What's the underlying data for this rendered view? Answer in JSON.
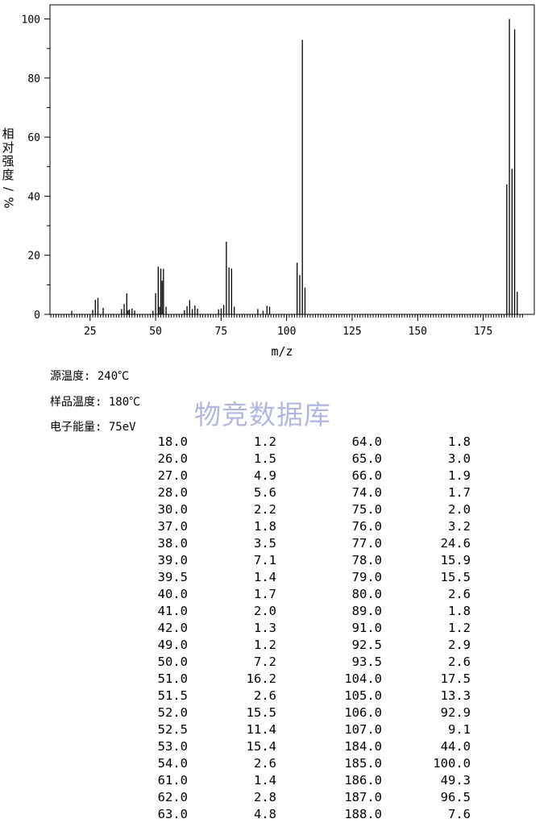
{
  "chart_data": {
    "type": "bar",
    "xlabel": "m/z",
    "ylabel": "相对强度/%",
    "xlim": [
      10,
      190
    ],
    "ylim": [
      0,
      100
    ],
    "x_ticks": [
      "25",
      "50",
      "75",
      "100",
      "125",
      "150",
      "175"
    ],
    "y_ticks": [
      "0",
      "20",
      "40",
      "60",
      "80",
      "100"
    ],
    "peaks": [
      {
        "mz": 18.0,
        "intensity": 1.2
      },
      {
        "mz": 26.0,
        "intensity": 1.5
      },
      {
        "mz": 27.0,
        "intensity": 4.9
      },
      {
        "mz": 28.0,
        "intensity": 5.6
      },
      {
        "mz": 30.0,
        "intensity": 2.2
      },
      {
        "mz": 37.0,
        "intensity": 1.8
      },
      {
        "mz": 38.0,
        "intensity": 3.5
      },
      {
        "mz": 39.0,
        "intensity": 7.1
      },
      {
        "mz": 39.5,
        "intensity": 1.4
      },
      {
        "mz": 40.0,
        "intensity": 1.7
      },
      {
        "mz": 41.0,
        "intensity": 2.0
      },
      {
        "mz": 42.0,
        "intensity": 1.3
      },
      {
        "mz": 49.0,
        "intensity": 1.2
      },
      {
        "mz": 50.0,
        "intensity": 7.2
      },
      {
        "mz": 51.0,
        "intensity": 16.2
      },
      {
        "mz": 51.5,
        "intensity": 2.6
      },
      {
        "mz": 52.0,
        "intensity": 15.5
      },
      {
        "mz": 52.5,
        "intensity": 11.4
      },
      {
        "mz": 53.0,
        "intensity": 15.4
      },
      {
        "mz": 54.0,
        "intensity": 2.6
      },
      {
        "mz": 61.0,
        "intensity": 1.4
      },
      {
        "mz": 62.0,
        "intensity": 2.8
      },
      {
        "mz": 63.0,
        "intensity": 4.8
      },
      {
        "mz": 64.0,
        "intensity": 1.8
      },
      {
        "mz": 65.0,
        "intensity": 3.0
      },
      {
        "mz": 66.0,
        "intensity": 1.9
      },
      {
        "mz": 74.0,
        "intensity": 1.7
      },
      {
        "mz": 75.0,
        "intensity": 2.0
      },
      {
        "mz": 76.0,
        "intensity": 3.2
      },
      {
        "mz": 77.0,
        "intensity": 24.6
      },
      {
        "mz": 78.0,
        "intensity": 15.9
      },
      {
        "mz": 79.0,
        "intensity": 15.5
      },
      {
        "mz": 80.0,
        "intensity": 2.6
      },
      {
        "mz": 89.0,
        "intensity": 1.8
      },
      {
        "mz": 91.0,
        "intensity": 1.2
      },
      {
        "mz": 92.5,
        "intensity": 2.9
      },
      {
        "mz": 93.5,
        "intensity": 2.6
      },
      {
        "mz": 104.0,
        "intensity": 17.5
      },
      {
        "mz": 105.0,
        "intensity": 13.3
      },
      {
        "mz": 106.0,
        "intensity": 92.9
      },
      {
        "mz": 107.0,
        "intensity": 9.1
      },
      {
        "mz": 184.0,
        "intensity": 44.0
      },
      {
        "mz": 185.0,
        "intensity": 100.0
      },
      {
        "mz": 186.0,
        "intensity": 49.3
      },
      {
        "mz": 187.0,
        "intensity": 96.5
      },
      {
        "mz": 188.0,
        "intensity": 7.6
      }
    ]
  },
  "conditions": {
    "source_temp": "源温度: 240℃",
    "sample_temp": "样品温度: 180℃",
    "electron_energy": "电子能量: 75eV"
  },
  "watermark": "物竞数据库",
  "table_rows": [
    [
      "18.0",
      "1.2",
      "64.0",
      "1.8"
    ],
    [
      "26.0",
      "1.5",
      "65.0",
      "3.0"
    ],
    [
      "27.0",
      "4.9",
      "66.0",
      "1.9"
    ],
    [
      "28.0",
      "5.6",
      "74.0",
      "1.7"
    ],
    [
      "30.0",
      "2.2",
      "75.0",
      "2.0"
    ],
    [
      "37.0",
      "1.8",
      "76.0",
      "3.2"
    ],
    [
      "38.0",
      "3.5",
      "77.0",
      "24.6"
    ],
    [
      "39.0",
      "7.1",
      "78.0",
      "15.9"
    ],
    [
      "39.5",
      "1.4",
      "79.0",
      "15.5"
    ],
    [
      "40.0",
      "1.7",
      "80.0",
      "2.6"
    ],
    [
      "41.0",
      "2.0",
      "89.0",
      "1.8"
    ],
    [
      "42.0",
      "1.3",
      "91.0",
      "1.2"
    ],
    [
      "49.0",
      "1.2",
      "92.5",
      "2.9"
    ],
    [
      "50.0",
      "7.2",
      "93.5",
      "2.6"
    ],
    [
      "51.0",
      "16.2",
      "104.0",
      "17.5"
    ],
    [
      "51.5",
      "2.6",
      "105.0",
      "13.3"
    ],
    [
      "52.0",
      "15.5",
      "106.0",
      "92.9"
    ],
    [
      "52.5",
      "11.4",
      "107.0",
      "9.1"
    ],
    [
      "53.0",
      "15.4",
      "184.0",
      "44.0"
    ],
    [
      "54.0",
      "2.6",
      "185.0",
      "100.0"
    ],
    [
      "61.0",
      "1.4",
      "186.0",
      "49.3"
    ],
    [
      "62.0",
      "2.8",
      "187.0",
      "96.5"
    ],
    [
      "63.0",
      "4.8",
      "188.0",
      "7.6"
    ]
  ]
}
